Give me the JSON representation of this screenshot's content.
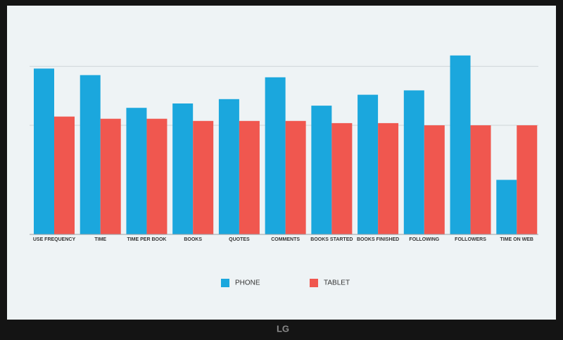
{
  "chart_data": {
    "type": "bar",
    "categories": [
      "USE FREQUENCY",
      "TIME",
      "TIME PER BOOK",
      "BOOKS",
      "QUOTES",
      "COMMENTS",
      "BOOKS STARTED",
      "BOOKS FINISHED",
      "FOLLOWING",
      "FOLLOWERS",
      "TIME ON WEB"
    ],
    "series": [
      {
        "name": "PHONE",
        "color": "#1ba7dd",
        "values": [
          76,
          73,
          58,
          60,
          62,
          72,
          59,
          64,
          66,
          82,
          25
        ]
      },
      {
        "name": "TABLET",
        "color": "#f0574f",
        "values": [
          54,
          53,
          53,
          52,
          52,
          52,
          51,
          51,
          50,
          50,
          50
        ]
      }
    ],
    "ylim": [
      0,
      90
    ],
    "gridlines": [
      50,
      77
    ],
    "grid": true,
    "legend": "bottom"
  },
  "brand": "LG"
}
